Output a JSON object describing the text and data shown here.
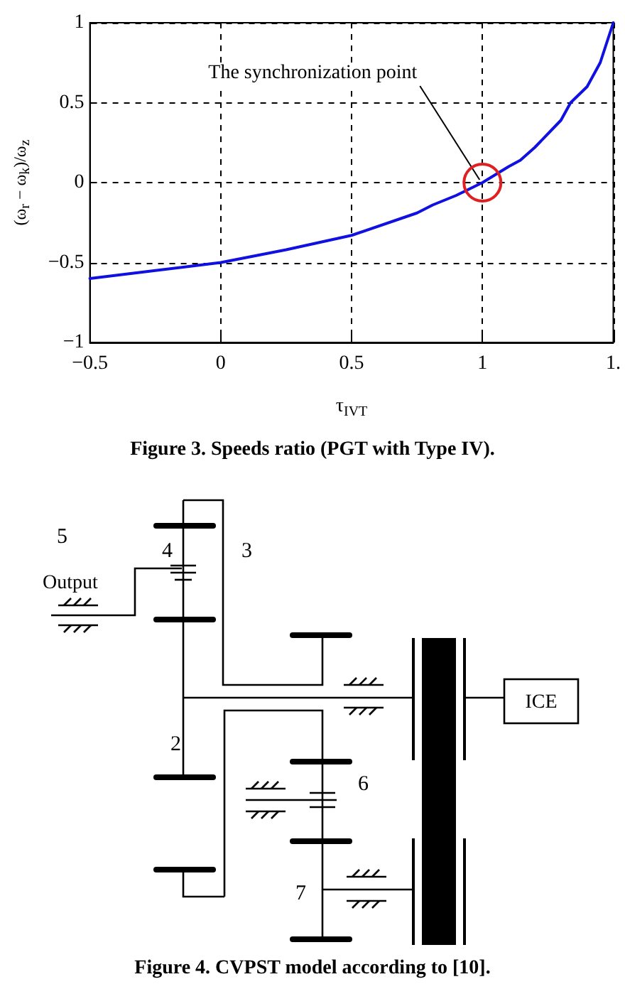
{
  "chart_data": {
    "type": "line",
    "xlabel": "τ$_{IVT}$",
    "ylabel": "(ω$_{r}$ − ω$_{k}$)/ω$_{z}$",
    "x": [
      -0.5,
      -0.25,
      0,
      0.25,
      0.5,
      0.75,
      0.81,
      0.9,
      1.0,
      1.1,
      1.145,
      1.2,
      1.3,
      1.337,
      1.4,
      1.45,
      1.5
    ],
    "series": [
      {
        "color": "#1010e0",
        "values": [
          -0.6,
          -0.55,
          -0.5,
          -0.42,
          -0.33,
          -0.19,
          -0.14,
          -0.08,
          0,
          0.1,
          0.14,
          0.22,
          0.39,
          0.5,
          0.6,
          0.75,
          1.0
        ]
      }
    ],
    "xlim": [
      -0.5,
      1.5
    ],
    "xticks": [
      -0.5,
      0,
      0.5,
      1,
      {
        "value": 1.5,
        "label": "1."
      }
    ],
    "ylim": [
      -1,
      1
    ],
    "yticks": [
      -1,
      -0.5,
      0,
      0.5,
      1
    ],
    "grid": true,
    "line_style": "solid",
    "marker": "none",
    "annotations": [
      {
        "text": "The synchronization point",
        "x": 1,
        "y": 0
      },
      "Figure 3. Speeds ratio (PGT with Type IV).",
      "Figure 4. CVPST model according to [10].",
      "Output",
      "ICE",
      "2",
      "3",
      "4",
      "5",
      "6",
      "7"
    ]
  }
}
